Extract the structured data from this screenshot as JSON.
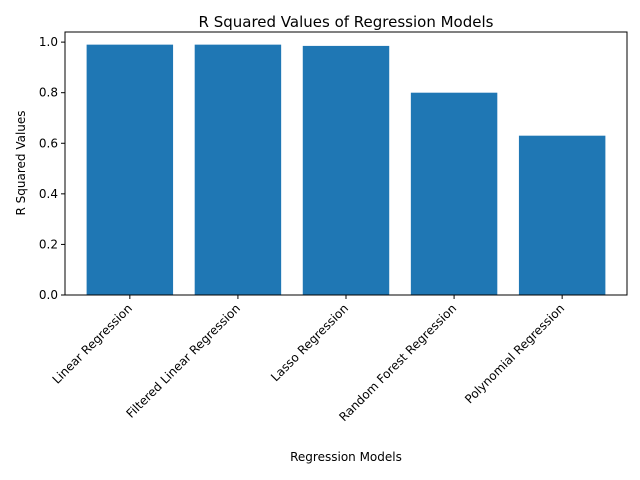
{
  "chart_data": {
    "type": "bar",
    "title": "R Squared Values of Regression Models",
    "xlabel": "Regression Models",
    "ylabel": "R Squared Values",
    "categories": [
      "Linear Regression",
      "Filtered Linear Regression",
      "Lasso Regression",
      "Random Forest Regression",
      "Polynomial Regression"
    ],
    "values": [
      0.99,
      0.99,
      0.985,
      0.8,
      0.63
    ],
    "ylim": [
      0,
      1.04
    ],
    "yticks": [
      "0.0",
      "0.2",
      "0.4",
      "0.6",
      "0.8",
      "1.0"
    ],
    "grid": false,
    "bar_color": "#1f77b4"
  }
}
